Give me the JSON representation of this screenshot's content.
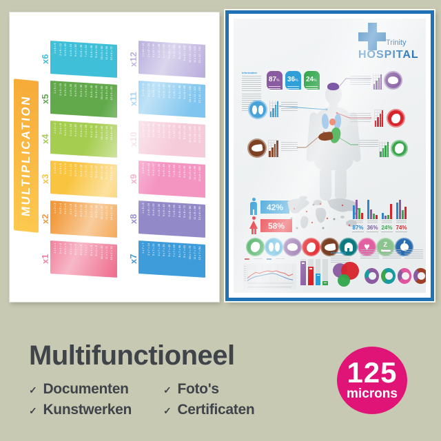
{
  "scene": {
    "background": "#c8c9b2"
  },
  "left_poster": {
    "title": "MULTIPLICATION",
    "banner_colors": [
      "#f7ab39",
      "#fdc94f"
    ],
    "tables": [
      {
        "label": "x6",
        "color": "#3fc0d8",
        "equations": [
          "1 x 6 = 6",
          "2 x 6 = 12",
          "3 x 6 = 18",
          "4 x 6 = 24",
          "5 x 6 = 30",
          "6 x 6 = 36",
          "7 x 6 = 42",
          "8 x 6 = 48",
          "9 x 6 = 54",
          "10 x 6 = 60",
          "11 x 6 = 66",
          "12 x 6 = 72"
        ]
      },
      {
        "label": "x5",
        "color": "#61a94b",
        "equations": [
          "1 x 5 = 5",
          "2 x 5 = 10",
          "3 x 5 = 15",
          "4 x 5 = 20",
          "5 x 5 = 25",
          "6 x 5 = 30",
          "7 x 5 = 35",
          "8 x 5 = 40",
          "9 x 5 = 45",
          "10 x 5 = 50",
          "11 x 5 = 55",
          "12 x 5 = 60"
        ]
      },
      {
        "label": "x4",
        "color": "#a5cd4f",
        "equations": [
          "1 x 4 = 4",
          "2 x 4 = 8",
          "3 x 4 = 12",
          "4 x 4 = 16",
          "5 x 4 = 20",
          "6 x 4 = 24",
          "7 x 4 = 28",
          "8 x 4 = 32",
          "9 x 4 = 36",
          "10 x 4 = 40",
          "11 x 4 = 44",
          "12 x 4 = 48"
        ]
      },
      {
        "label": "x3",
        "color": "#f9c440",
        "equations": [
          "1 x 3 = 3",
          "2 x 3 = 6",
          "3 x 3 = 9",
          "4 x 3 = 12",
          "5 x 3 = 15",
          "6 x 3 = 18",
          "7 x 3 = 21",
          "8 x 3 = 24",
          "9 x 3 = 27",
          "10 x 3 = 30",
          "11 x 3 = 33",
          "12 x 3 = 36"
        ]
      },
      {
        "label": "x2",
        "color": "#f29a3b",
        "equations": [
          "1 x 2 = 2",
          "2 x 2 = 4",
          "3 x 2 = 6",
          "4 x 2 = 8",
          "5 x 2 = 10",
          "6 x 2 = 12",
          "7 x 2 = 14",
          "8 x 2 = 16",
          "9 x 2 = 18",
          "10 x 2 = 20",
          "11 x 2 = 22",
          "12 x 2 = 24"
        ]
      },
      {
        "label": "x1",
        "color": "#ef7090",
        "equations": [
          "1 x 1 = 1",
          "2 x 1 = 2",
          "3 x 1 = 3",
          "4 x 1 = 4",
          "5 x 1 = 5",
          "6 x 1 = 6",
          "7 x 1 = 7",
          "8 x 1 = 8",
          "9 x 1 = 9",
          "10 x 1 = 10",
          "11 x 1 = 11",
          "12 x 1 = 12"
        ]
      },
      {
        "label": "x12",
        "color": "#b7abdc",
        "equations": [
          "1 x 12 = 12",
          "2 x 12 = 24",
          "3 x 12 = 36",
          "4 x 12 = 48",
          "5 x 12 = 60",
          "6 x 12 = 72",
          "7 x 12 = 84",
          "8 x 12 = 96",
          "9 x 12 = 108",
          "10 x 12 = 120",
          "11 x 12 = 132",
          "12 x 12 = 144"
        ]
      },
      {
        "label": "x11",
        "color": "#7fc5ef",
        "equations": [
          "1 x 11 = 11",
          "2 x 11 = 22",
          "3 x 11 = 33",
          "4 x 11 = 44",
          "5 x 11 = 55",
          "6 x 11 = 66",
          "7 x 11 = 77",
          "8 x 11 = 88",
          "9 x 11 = 99",
          "10 x 11 = 110",
          "11 x 11 = 121",
          "12 x 11 = 132"
        ]
      },
      {
        "label": "x10",
        "color": "#f6cbd9",
        "equations": [
          "1 x 10 = 10",
          "2 x 10 = 20",
          "3 x 10 = 30",
          "4 x 10 = 40",
          "5 x 10 = 50",
          "6 x 10 = 60",
          "7 x 10 = 70",
          "8 x 10 = 80",
          "9 x 10 = 90",
          "10 x 10 = 100",
          "11 x 10 = 110",
          "12 x 10 = 120"
        ]
      },
      {
        "label": "x9",
        "color": "#f494c1",
        "equations": [
          "1 x 9 = 9",
          "2 x 9 = 18",
          "3 x 9 = 27",
          "4 x 9 = 36",
          "5 x 9 = 45",
          "6 x 9 = 54",
          "7 x 9 = 63",
          "8 x 9 = 72",
          "9 x 9 = 81",
          "10 x 9 = 90",
          "11 x 9 = 99",
          "12 x 9 = 108"
        ]
      },
      {
        "label": "x8",
        "color": "#9289c8",
        "equations": [
          "1 x 8 = 8",
          "2 x 8 = 16",
          "3 x 8 = 24",
          "4 x 8 = 32",
          "5 x 8 = 40",
          "6 x 8 = 48",
          "7 x 8 = 56",
          "8 x 8 = 64",
          "9 x 8 = 72",
          "10 x 8 = 80",
          "11 x 8 = 88",
          "12 x 8 = 96"
        ]
      },
      {
        "label": "x7",
        "color": "#3f9cdb",
        "equations": [
          "1 x 7 = 7",
          "2 x 7 = 14",
          "3 x 7 = 21",
          "4 x 7 = 28",
          "5 x 7 = 35",
          "6 x 7 = 42",
          "7 x 7 = 49",
          "8 x 7 = 56",
          "9 x 7 = 63",
          "10 x 7 = 70",
          "11 x 7 = 77",
          "12 x 7 = 84"
        ]
      }
    ]
  },
  "right_poster": {
    "frame_color": "#2171b5",
    "logo": {
      "name": "Trinity",
      "word": "HOSPITAL",
      "color": "#2273b8"
    },
    "information_label": "Information",
    "top_badges": [
      {
        "value": "87",
        "unit": "%",
        "color": "#8a5ba0"
      },
      {
        "value": "36",
        "unit": "%",
        "color": "#2f9fd8"
      },
      {
        "value": "24",
        "unit": "%",
        "color": "#33a64c"
      }
    ],
    "organ_callouts": [
      {
        "organ": "brain",
        "color": "#8a63a5",
        "side": "right"
      },
      {
        "organ": "lungs",
        "color": "#4aa3d8",
        "side": "left"
      },
      {
        "organ": "heart",
        "color": "#d8232a",
        "side": "right"
      },
      {
        "organ": "liver",
        "color": "#7d4123",
        "side": "left"
      },
      {
        "organ": "stomach",
        "color": "#3aa54d",
        "side": "right"
      }
    ],
    "gender_stats": [
      {
        "icon": "male",
        "value": "42%",
        "color": "#39a0d8"
      },
      {
        "icon": "female",
        "value": "58%",
        "color": "#e62b33"
      }
    ],
    "health_icons": [
      {
        "name": "stomach",
        "color": "#2fa54b"
      },
      {
        "name": "lungs",
        "color": "#3aa8d8"
      },
      {
        "name": "brain",
        "color": "#8a63a5"
      },
      {
        "name": "kidney",
        "color": "#e02326"
      },
      {
        "name": "liver",
        "color": "#7a3f22"
      },
      {
        "name": "tooth",
        "color": "#0c7a80"
      },
      {
        "name": "heart",
        "color": "#e25fa2"
      },
      {
        "name": "sleep",
        "color": "#8cc48f"
      },
      {
        "name": "apple",
        "color": "#2a6cb0"
      }
    ]
  },
  "chart_data": [
    {
      "id": "regional_groups",
      "type": "bar",
      "bar_colors": [
        "#2e86c6",
        "#8a5ba0",
        "#3aa54d",
        "#d8232a"
      ],
      "groups": [
        {
          "label": "87%",
          "label_color": "#2e86c6",
          "values": [
            20,
            28,
            16,
            9
          ]
        },
        {
          "label": "36%",
          "label_color": "#7b5ca5",
          "values": [
            28,
            14,
            8,
            6
          ]
        },
        {
          "label": "24%",
          "label_color": "#3aa54d",
          "values": [
            9,
            5,
            6,
            22
          ]
        },
        {
          "label": "74%",
          "label_color": "#d8232a",
          "values": [
            24,
            28,
            13,
            18
          ]
        }
      ],
      "ylim": [
        0,
        34
      ]
    },
    {
      "id": "trend_lines",
      "type": "line",
      "ylim": [
        0,
        10
      ],
      "series": [
        {
          "name": "red-series",
          "color": "#d0342c",
          "values": [
            3,
            5,
            6.5,
            6,
            7,
            7.5,
            7,
            7.5,
            6.5,
            6,
            4.5,
            5.5
          ]
        },
        {
          "name": "blue-series",
          "color": "#3a78b5",
          "values": [
            1.5,
            3,
            4,
            4.5,
            5,
            5.5,
            6,
            5.5,
            4.5,
            3.5,
            2.5,
            2
          ]
        }
      ]
    },
    {
      "id": "category_bars",
      "type": "bar",
      "values": [
        92,
        70,
        46,
        17
      ],
      "colors": [
        "#8a5ba0",
        "#d8232a",
        "#2e9fd6",
        "#3aa54d"
      ],
      "ylim": [
        0,
        100
      ]
    },
    {
      "id": "overlap_bubbles",
      "type": "pie",
      "circles": [
        {
          "color": "#8a5ba0",
          "d": 21,
          "x": 0,
          "y": 2
        },
        {
          "color": "#d8232a",
          "d": 26,
          "x": 12,
          "y": 0
        },
        {
          "color": "#2fa54b",
          "d": 18,
          "x": 7,
          "y": 18
        }
      ]
    },
    {
      "id": "donut_charts",
      "type": "pie",
      "donuts": [
        {
          "segments": [
            {
              "color": "#8a5ba0",
              "value": 78
            },
            {
              "color": "#1b9aa0",
              "value": 22
            }
          ]
        },
        {
          "segments": [
            {
              "color": "#1b9aa0",
              "value": 68
            },
            {
              "color": "#3aa54d",
              "value": 32
            }
          ]
        },
        {
          "segments": [
            {
              "color": "#e0559e",
              "value": 72
            },
            {
              "color": "#8a5ba0",
              "value": 28
            }
          ]
        },
        {
          "segments": [
            {
              "color": "#a04028",
              "value": 70
            },
            {
              "color": "#8a5ba0",
              "value": 30
            }
          ]
        }
      ]
    },
    {
      "id": "gender_split",
      "type": "bar",
      "categories": [
        "male",
        "female"
      ],
      "values": [
        42,
        58
      ],
      "colors": [
        "#39a0d8",
        "#e62b33"
      ]
    }
  ],
  "bottom_panel": {
    "title": "Multifunctioneel",
    "check_glyph": "✓",
    "features": [
      "Documenten",
      "Kunstwerken",
      "Foto's",
      "Certificaten"
    ],
    "badge": {
      "value": "125",
      "unit": "microns",
      "color": "#e01477"
    }
  }
}
